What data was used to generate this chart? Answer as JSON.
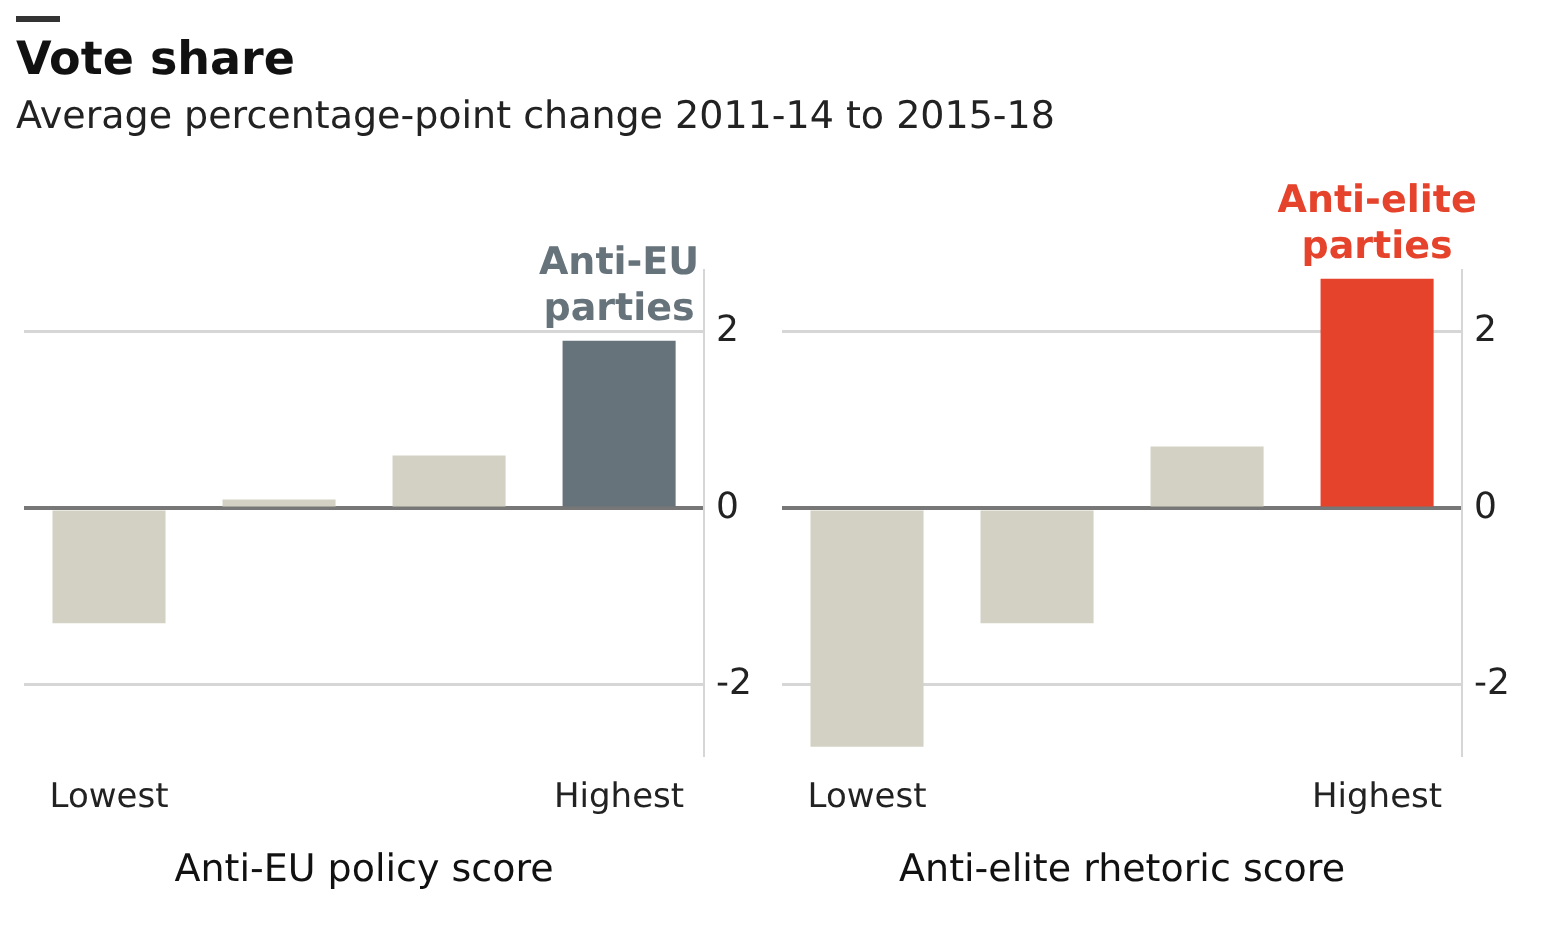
{
  "chart_data": [
    {
      "type": "bar",
      "title": "Vote share",
      "subtitle": "Average percentage-point change 2011-14 to 2015-18",
      "xlabel": "Anti-EU policy score",
      "categories": [
        "Lowest",
        null,
        null,
        "Highest"
      ],
      "values": [
        -1.3,
        0.1,
        0.6,
        1.9
      ],
      "colors": [
        "#d3d1c4",
        "#d3d1c4",
        "#d3d1c4",
        "#66737b"
      ],
      "ylim": [
        -2.8,
        2.7
      ],
      "yticks": [
        -2,
        0,
        2
      ],
      "grid": "y",
      "legend": false,
      "annotations": [
        {
          "text": "Anti-EU parties",
          "x": "Highest",
          "y": 1.9
        }
      ]
    },
    {
      "type": "bar",
      "xlabel": "Anti-elite rhetoric score",
      "categories": [
        "Lowest",
        null,
        null,
        "Highest"
      ],
      "values": [
        -2.7,
        -1.3,
        0.7,
        2.6
      ],
      "colors": [
        "#d3d1c4",
        "#d3d1c4",
        "#d3d1c4",
        "#e5432b"
      ],
      "ylim": [
        -2.8,
        2.7
      ],
      "yticks": [
        -2,
        0,
        2
      ],
      "grid": "y",
      "legend": false,
      "annotations": [
        {
          "text": "Anti-elite parties",
          "x": "Highest",
          "y": 2.6
        }
      ]
    }
  ]
}
